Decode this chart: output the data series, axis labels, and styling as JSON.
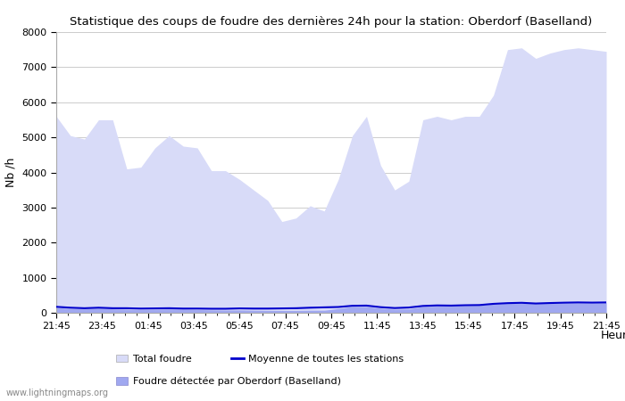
{
  "title": "Statistique des coups de foudre des dernières 24h pour la station: Oberdorf (Baselland)",
  "xlabel": "Heure",
  "ylabel": "Nb /h",
  "ylim": [
    0,
    8000
  ],
  "yticks": [
    0,
    1000,
    2000,
    3000,
    4000,
    5000,
    6000,
    7000,
    8000
  ],
  "x_labels": [
    "21:45",
    "23:45",
    "01:45",
    "03:45",
    "05:45",
    "07:45",
    "09:45",
    "11:45",
    "13:45",
    "15:45",
    "17:45",
    "19:45",
    "21:45"
  ],
  "fill_color_light": "#d8dbf8",
  "fill_color_dark": "#a0a8f0",
  "line_color": "#0000cc",
  "background_color": "#ffffff",
  "grid_color": "#cccccc",
  "watermark": "www.lightningmaps.org",
  "legend_total": "Total foudre",
  "legend_moyenne": "Moyenne de toutes les stations",
  "legend_foudre": "Foudre détectée par Oberdorf (Baselland)",
  "total_foudre": [
    5600,
    5050,
    4950,
    5500,
    5500,
    4100,
    4150,
    4700,
    5050,
    4750,
    4700,
    4050,
    4050,
    3800,
    3500,
    3200,
    2600,
    2700,
    3050,
    2900,
    3800,
    5050,
    5600,
    4200,
    3500,
    3750,
    5500,
    5600,
    5500,
    5600,
    5600,
    6200,
    7500,
    7550,
    7250,
    7400,
    7500,
    7550,
    7500,
    7450
  ],
  "foudre_detected": [
    150,
    120,
    110,
    130,
    110,
    100,
    90,
    100,
    110,
    100,
    90,
    80,
    75,
    80,
    70,
    65,
    65,
    65,
    70,
    70,
    120,
    180,
    180,
    130,
    100,
    110,
    180,
    190,
    190,
    200,
    210,
    250,
    270,
    280,
    265,
    270,
    280,
    285,
    280,
    285
  ],
  "moyenne": [
    170,
    145,
    130,
    145,
    130,
    130,
    120,
    125,
    130,
    120,
    120,
    115,
    115,
    125,
    120,
    120,
    125,
    130,
    145,
    155,
    165,
    200,
    205,
    160,
    135,
    150,
    195,
    210,
    205,
    215,
    220,
    255,
    275,
    285,
    265,
    278,
    288,
    295,
    290,
    295
  ]
}
